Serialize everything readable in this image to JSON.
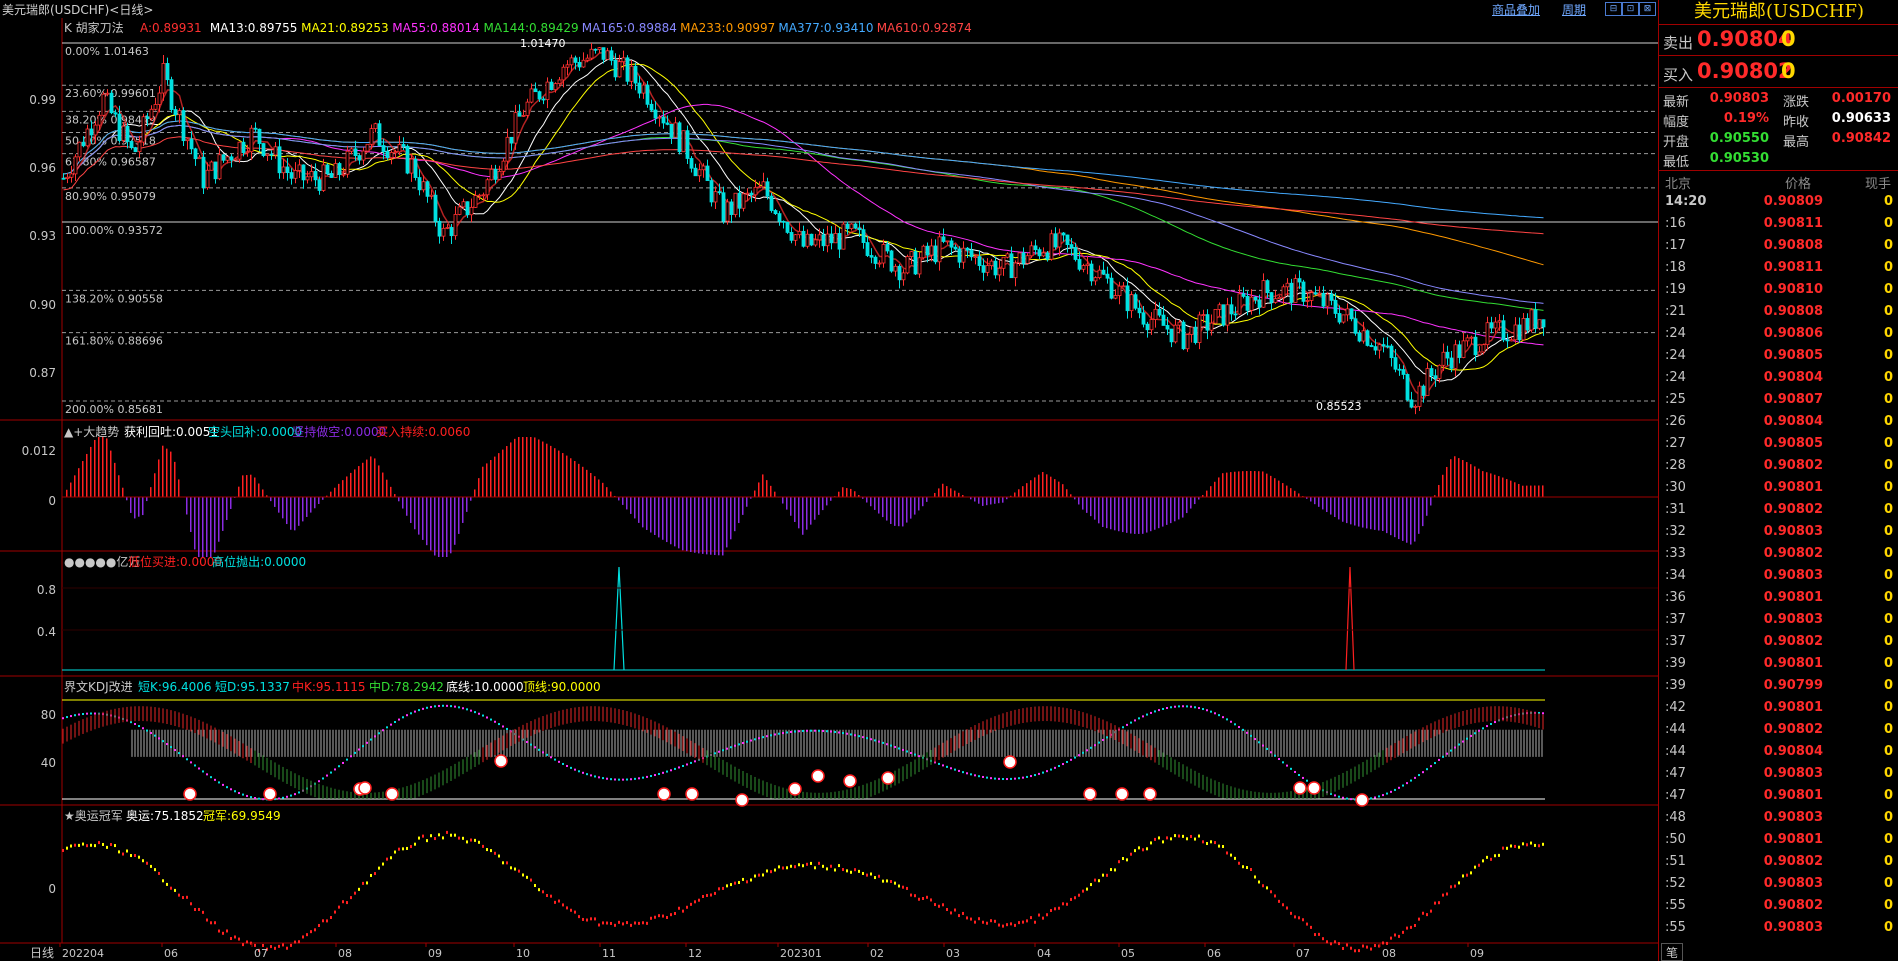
{
  "header": {
    "title": "美元瑞郎(USDCHF)<日线>",
    "links": [
      "商品叠加",
      "周期"
    ],
    "window_buttons": [
      "⊟",
      "⊡",
      "⊠"
    ]
  },
  "main_chart": {
    "indicator_name": "K  胡家刀法",
    "legend": [
      {
        "label": "A:0.89931",
        "color": "#ff3030"
      },
      {
        "label": "MA13:0.89755",
        "color": "#ffffff"
      },
      {
        "label": "MA21:0.89253",
        "color": "#ffff00"
      },
      {
        "label": "MA55:0.88014",
        "color": "#ff33ff"
      },
      {
        "label": "MA144:0.89429",
        "color": "#33dd33"
      },
      {
        "label": "MA165:0.89884",
        "color": "#8888ff"
      },
      {
        "label": "MA233:0.90997",
        "color": "#ff9900"
      },
      {
        "label": "MA377:0.93410",
        "color": "#44aaff"
      },
      {
        "label": "MA610:0.92874",
        "color": "#ff4444"
      }
    ],
    "fib_levels": [
      "0.00% 1.01463",
      "23.60% 0.99601",
      "38.20% 0.98449",
      "50.00% 0.97518",
      "61.80% 0.96587",
      "80.90% 0.95079",
      "100.00% 0.93572",
      "138.20% 0.90558",
      "161.80% 0.88696",
      "200.00% 0.85681"
    ],
    "high_label": "1.01470",
    "low_label": "0.85523",
    "y_ticks": [
      "0.99",
      "0.96",
      "0.93",
      "0.90",
      "0.87"
    ]
  },
  "panel_trend": {
    "name": "▲+大趋势",
    "values": [
      {
        "label": "获利回吐:0.0051",
        "color": "#ffffff"
      },
      {
        "label": "空头回补:0.0000",
        "color": "#00e0e0"
      },
      {
        "label": "坚持做空:0.0000",
        "color": "#8a2be2"
      },
      {
        "label": "买入持续:0.0060",
        "color": "#ff2020"
      }
    ],
    "y_ticks": [
      "0.012",
      "0"
    ]
  },
  "panel_signal": {
    "name": "●●●●●亿万",
    "values": [
      {
        "label": "低位买进:0.0000",
        "color": "#ff2020"
      },
      {
        "label": "高位抛出:0.0000",
        "color": "#00e0e0"
      }
    ],
    "y_ticks": [
      "0.8",
      "0.4"
    ]
  },
  "panel_kdj": {
    "name": "界文KDJ改进",
    "values": [
      {
        "label": "短K:96.4006",
        "color": "#00e0e0"
      },
      {
        "label": "短D:95.1337",
        "color": "#00e0e0"
      },
      {
        "label": "中K:95.1115",
        "color": "#ff2020"
      },
      {
        "label": "中D:78.2942",
        "color": "#33dd33"
      },
      {
        "label": "底线:10.0000",
        "color": "#ffffff"
      },
      {
        "label": "顶线:90.0000",
        "color": "#ffff00"
      }
    ],
    "y_ticks": [
      "80",
      "40"
    ]
  },
  "panel_olympic": {
    "name": "★奥运冠军",
    "values": [
      {
        "label": "奥运:75.1852",
        "color": "#ffffff"
      },
      {
        "label": "冠军:69.9549",
        "color": "#ffff00"
      }
    ],
    "y_ticks": [
      "0"
    ]
  },
  "x_axis": {
    "left_label": "日线",
    "labels": [
      "202204",
      "06",
      "07",
      "08",
      "09",
      "10",
      "11",
      "12",
      "202301",
      "02",
      "03",
      "04",
      "05",
      "06",
      "07",
      "08",
      "09"
    ]
  },
  "quote": {
    "title": "美元瑞郎(USDCHF)",
    "sell_label": "卖出",
    "sell_price": "0.90804",
    "sell_vol": "0",
    "buy_label": "买入",
    "buy_price": "0.90802",
    "buy_vol": "0",
    "stats": [
      {
        "l1": "最新",
        "v1": "0.90803",
        "c1": "#ff2a2a",
        "l2": "涨跌",
        "v2": "0.00170",
        "c2": "#ff2a2a"
      },
      {
        "l1": "幅度",
        "v1": "0.19%",
        "c1": "#ff2a2a",
        "l2": "昨收",
        "v2": "0.90633",
        "c2": "#ffffff"
      },
      {
        "l1": "开盘",
        "v1": "0.90550",
        "c1": "#33dd33",
        "l2": "最高",
        "v2": "0.90842",
        "c2": "#ff2a2a"
      },
      {
        "l1": "最低",
        "v1": "0.90530",
        "c1": "#33dd33",
        "l2": "",
        "v2": "",
        "c2": "#ffffff"
      }
    ],
    "tick_headers": [
      "北京",
      "价格",
      "现手"
    ],
    "ticks": [
      {
        "t": "14:20",
        "p": "0.90809",
        "v": "0"
      },
      {
        "t": ":16",
        "p": "0.90811",
        "v": "0"
      },
      {
        "t": ":17",
        "p": "0.90808",
        "v": "0"
      },
      {
        "t": ":18",
        "p": "0.90811",
        "v": "0"
      },
      {
        "t": ":19",
        "p": "0.90810",
        "v": "0"
      },
      {
        "t": ":21",
        "p": "0.90808",
        "v": "0"
      },
      {
        "t": ":24",
        "p": "0.90806",
        "v": "0"
      },
      {
        "t": ":24",
        "p": "0.90805",
        "v": "0"
      },
      {
        "t": ":24",
        "p": "0.90804",
        "v": "0"
      },
      {
        "t": ":25",
        "p": "0.90807",
        "v": "0"
      },
      {
        "t": ":26",
        "p": "0.90804",
        "v": "0"
      },
      {
        "t": ":27",
        "p": "0.90805",
        "v": "0"
      },
      {
        "t": ":28",
        "p": "0.90802",
        "v": "0"
      },
      {
        "t": ":30",
        "p": "0.90801",
        "v": "0"
      },
      {
        "t": ":31",
        "p": "0.90802",
        "v": "0"
      },
      {
        "t": ":32",
        "p": "0.90803",
        "v": "0"
      },
      {
        "t": ":33",
        "p": "0.90802",
        "v": "0"
      },
      {
        "t": ":34",
        "p": "0.90803",
        "v": "0"
      },
      {
        "t": ":36",
        "p": "0.90801",
        "v": "0"
      },
      {
        "t": ":37",
        "p": "0.90803",
        "v": "0"
      },
      {
        "t": ":37",
        "p": "0.90802",
        "v": "0"
      },
      {
        "t": ":39",
        "p": "0.90801",
        "v": "0"
      },
      {
        "t": ":39",
        "p": "0.90799",
        "v": "0"
      },
      {
        "t": ":42",
        "p": "0.90801",
        "v": "0"
      },
      {
        "t": ":44",
        "p": "0.90802",
        "v": "0"
      },
      {
        "t": ":44",
        "p": "0.90804",
        "v": "0"
      },
      {
        "t": ":47",
        "p": "0.90803",
        "v": "0"
      },
      {
        "t": ":47",
        "p": "0.90801",
        "v": "0"
      },
      {
        "t": ":48",
        "p": "0.90803",
        "v": "0"
      },
      {
        "t": ":50",
        "p": "0.90801",
        "v": "0"
      },
      {
        "t": ":51",
        "p": "0.90802",
        "v": "0"
      },
      {
        "t": ":52",
        "p": "0.90803",
        "v": "0"
      },
      {
        "t": ":55",
        "p": "0.90802",
        "v": "0"
      },
      {
        "t": ":55",
        "p": "0.90803",
        "v": "0"
      }
    ],
    "footer_tab": "笔"
  }
}
